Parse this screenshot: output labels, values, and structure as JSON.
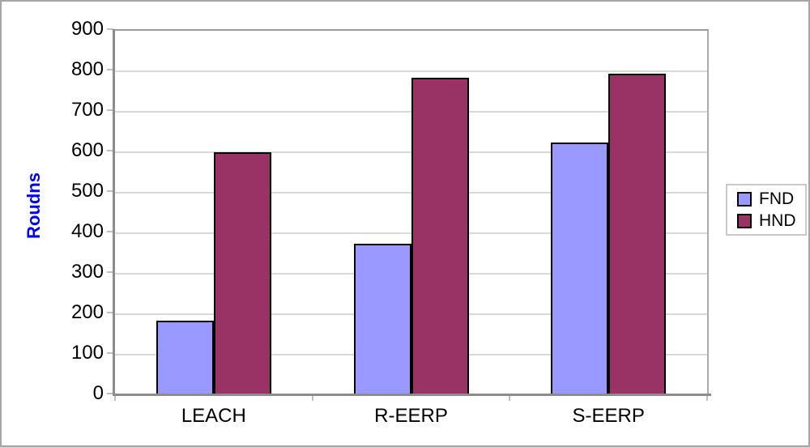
{
  "chart_data": {
    "type": "bar",
    "title": "",
    "xlabel": "",
    "ylabel": "Roudns",
    "categories": [
      "LEACH",
      "R-EERP",
      "S-EERP"
    ],
    "series": [
      {
        "name": "FND",
        "color": "#9999FF",
        "values": [
          185,
          375,
          625
        ]
      },
      {
        "name": "HND",
        "color": "#993366",
        "values": [
          600,
          785,
          795
        ]
      }
    ],
    "ylim": [
      0,
      900
    ],
    "ytick_step": 100,
    "yticks": [
      0,
      100,
      200,
      300,
      400,
      500,
      600,
      700,
      800,
      900
    ],
    "grid": true,
    "legend_position": "right"
  },
  "legend": {
    "items": [
      {
        "label": "FND",
        "color": "#9999FF"
      },
      {
        "label": "HND",
        "color": "#993366"
      }
    ]
  },
  "colors": {
    "fnd": "#9999FF",
    "hnd": "#993366",
    "bar_border": "#000000",
    "gridline": "#D9D9D9",
    "axis": "#8C8C8C",
    "tick": "#C0C0C0",
    "ylabel_text": "#0000FF",
    "text": "#000000",
    "chart_border": "#A6A6A6",
    "legend_border": "#C9C9C9",
    "background": "#FFFFFF"
  }
}
